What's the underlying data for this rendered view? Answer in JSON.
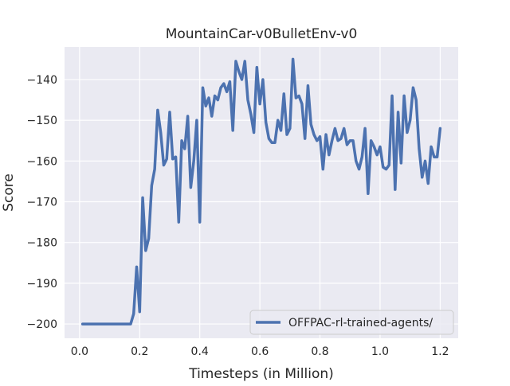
{
  "colors": {
    "plot_background": "#eaeaf2",
    "grid": "#ffffff",
    "series": "#4c72b0",
    "text": "#262626"
  },
  "chart_data": {
    "type": "line",
    "title": "MountainCar-v0BulletEnv-v0",
    "xlabel": "Timesteps (in Million)",
    "ylabel": "Score",
    "xlim": [
      -0.05,
      1.26
    ],
    "ylim": [
      -203.5,
      -132
    ],
    "xticks": [
      0.0,
      0.2,
      0.4,
      0.6,
      0.8,
      1.0,
      1.2
    ],
    "xtick_labels": [
      "0.0",
      "0.2",
      "0.4",
      "0.6",
      "0.8",
      "1.0",
      "1.2"
    ],
    "yticks": [
      -200,
      -190,
      -180,
      -170,
      -160,
      -150,
      -140
    ],
    "ytick_labels": [
      "−200",
      "−190",
      "−180",
      "−170",
      "−160",
      "−150",
      "−140"
    ],
    "grid": true,
    "legend_position": "lower-right",
    "series": [
      {
        "name": "OFFPAC-rl-trained-agents/",
        "x": [
          0.01,
          0.02,
          0.03,
          0.04,
          0.05,
          0.06,
          0.07,
          0.08,
          0.09,
          0.1,
          0.11,
          0.12,
          0.13,
          0.14,
          0.15,
          0.16,
          0.17,
          0.18,
          0.19,
          0.2,
          0.21,
          0.22,
          0.23,
          0.24,
          0.25,
          0.26,
          0.27,
          0.28,
          0.29,
          0.3,
          0.31,
          0.32,
          0.33,
          0.34,
          0.35,
          0.36,
          0.37,
          0.38,
          0.39,
          0.4,
          0.41,
          0.42,
          0.43,
          0.44,
          0.45,
          0.46,
          0.47,
          0.48,
          0.49,
          0.5,
          0.51,
          0.52,
          0.53,
          0.54,
          0.55,
          0.56,
          0.57,
          0.58,
          0.59,
          0.6,
          0.61,
          0.62,
          0.63,
          0.64,
          0.65,
          0.66,
          0.67,
          0.68,
          0.69,
          0.7,
          0.71,
          0.72,
          0.73,
          0.74,
          0.75,
          0.76,
          0.77,
          0.78,
          0.79,
          0.8,
          0.81,
          0.82,
          0.83,
          0.84,
          0.85,
          0.86,
          0.87,
          0.88,
          0.89,
          0.9,
          0.91,
          0.92,
          0.93,
          0.94,
          0.95,
          0.96,
          0.97,
          0.98,
          0.99,
          1.0,
          1.01,
          1.02,
          1.03,
          1.04,
          1.05,
          1.06,
          1.07,
          1.08,
          1.09,
          1.1,
          1.11,
          1.12,
          1.13,
          1.14,
          1.15,
          1.16,
          1.17,
          1.18,
          1.19,
          1.2
        ],
        "y": [
          -200,
          -200,
          -200,
          -200,
          -200,
          -200,
          -200,
          -200,
          -200,
          -200,
          -200,
          -200,
          -200,
          -200,
          -200,
          -200,
          -200,
          -197.5,
          -186,
          -197,
          -169,
          -182,
          -179,
          -166,
          -162,
          -147.5,
          -153,
          -161,
          -159.5,
          -148,
          -159.5,
          -159,
          -175,
          -155,
          -157,
          -149,
          -166.5,
          -160,
          -150,
          -175,
          -142,
          -146.5,
          -144.5,
          -149,
          -144,
          -145,
          -142,
          -141,
          -143,
          -140.5,
          -152.5,
          -135.5,
          -138,
          -140,
          -135.5,
          -145,
          -148.5,
          -153,
          -137,
          -146,
          -140,
          -150.5,
          -154.5,
          -155.5,
          -155.5,
          -150,
          -152.5,
          -143.5,
          -153.5,
          -152,
          -135,
          -144.5,
          -144,
          -146,
          -154.5,
          -141.5,
          -151,
          -153.5,
          -155,
          -154,
          -162,
          -153.5,
          -158.5,
          -155,
          -152,
          -155,
          -154.5,
          -152,
          -156,
          -155,
          -155,
          -160,
          -162,
          -159,
          -152,
          -168,
          -155,
          -156.5,
          -158.5,
          -156.5,
          -161.5,
          -162,
          -161,
          -144,
          -167,
          -148,
          -160.5,
          -144,
          -153,
          -150,
          -142,
          -145,
          -157,
          -164,
          -160,
          -165.5,
          -156.5,
          -159,
          -159,
          -152
        ]
      }
    ]
  }
}
